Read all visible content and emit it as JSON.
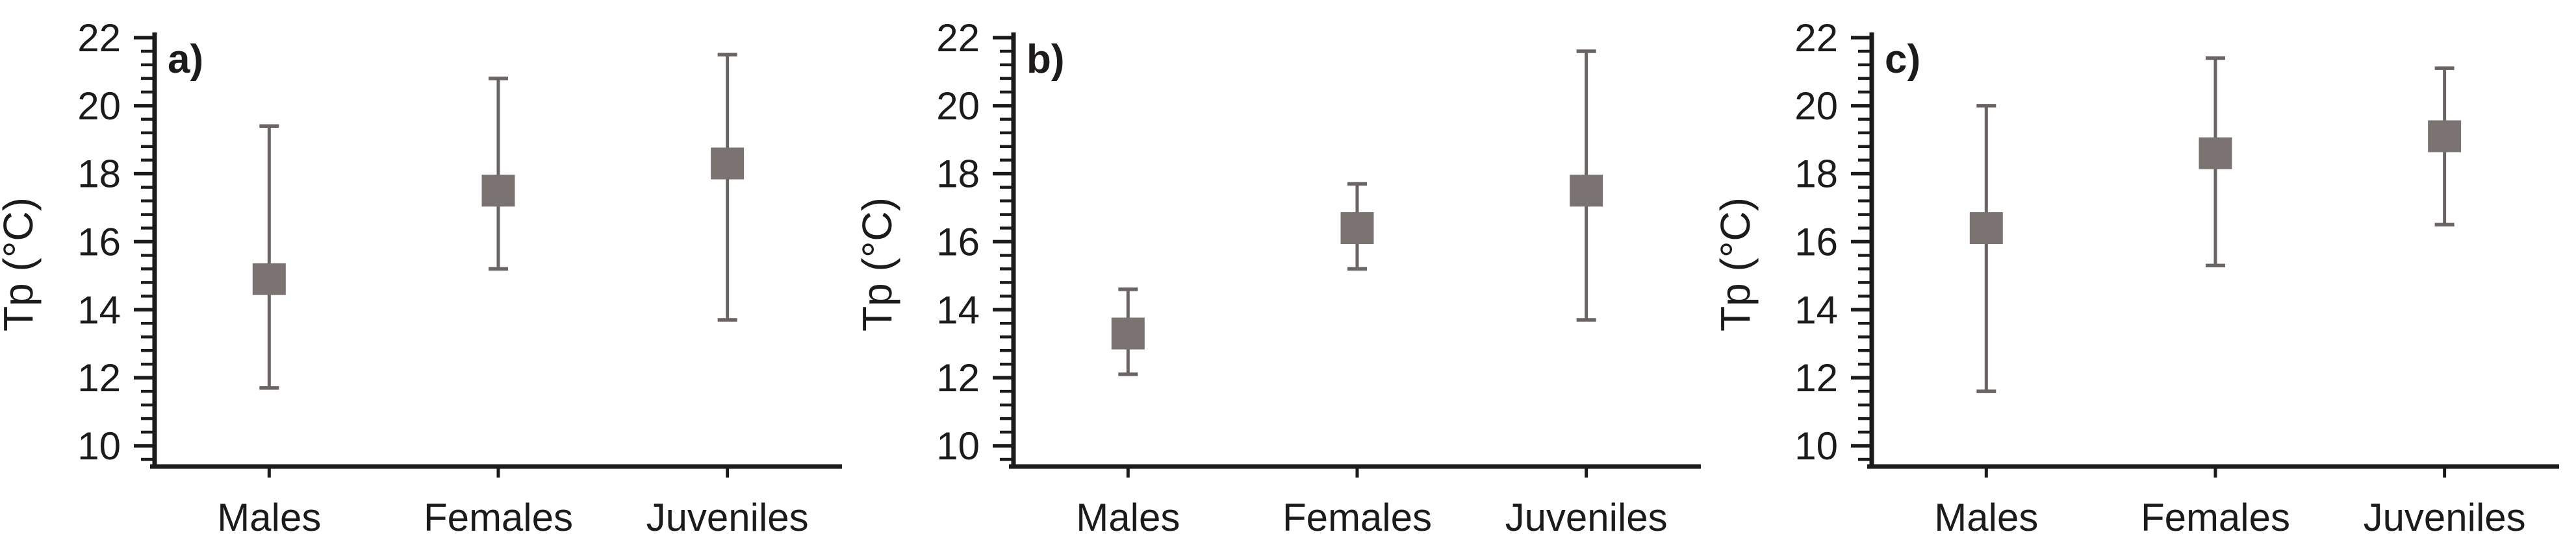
{
  "figure": {
    "background": "#ffffff",
    "style": {
      "marker_color": "#7a7371",
      "errorbar_color": "#6a6563",
      "axis_color": "#1d1b1a",
      "text_color": "#1d1b1a",
      "marker_shape": "square"
    }
  },
  "chart_data": [
    {
      "type": "scatter",
      "subtype": "point-with-error-bars",
      "panel_label": "a)",
      "ylabel": "Tp (°C)",
      "xlabel": "",
      "categories": [
        "Males",
        "Females",
        "Juveniles"
      ],
      "means": [
        14.9,
        17.5,
        18.3
      ],
      "error_upper": [
        19.4,
        20.8,
        21.5
      ],
      "error_lower": [
        11.7,
        15.2,
        13.7
      ],
      "ylim": [
        10,
        22
      ],
      "yticks": [
        10,
        12,
        14,
        16,
        18,
        20,
        22
      ],
      "ytick_major_step": 2,
      "ytick_minor_step": 0.4,
      "grid": false,
      "legend": false
    },
    {
      "type": "scatter",
      "subtype": "point-with-error-bars",
      "panel_label": "b)",
      "ylabel": "Tp (°C)",
      "xlabel": "",
      "categories": [
        "Males",
        "Females",
        "Juveniles"
      ],
      "means": [
        13.3,
        16.4,
        17.5
      ],
      "error_upper": [
        14.6,
        17.7,
        21.6
      ],
      "error_lower": [
        12.1,
        15.2,
        13.7
      ],
      "ylim": [
        10,
        22
      ],
      "yticks": [
        10,
        12,
        14,
        16,
        18,
        20,
        22
      ],
      "ytick_major_step": 2,
      "ytick_minor_step": 0.4,
      "grid": false,
      "legend": false
    },
    {
      "type": "scatter",
      "subtype": "point-with-error-bars",
      "panel_label": "c)",
      "ylabel": "Tp (°C)",
      "xlabel": "",
      "categories": [
        "Males",
        "Females",
        "Juveniles"
      ],
      "means": [
        16.4,
        18.6,
        19.1
      ],
      "error_upper": [
        20.0,
        21.4,
        21.1
      ],
      "error_lower": [
        11.6,
        15.3,
        16.5
      ],
      "ylim": [
        10,
        22
      ],
      "yticks": [
        10,
        12,
        14,
        16,
        18,
        20,
        22
      ],
      "ytick_major_step": 2,
      "ytick_minor_step": 0.4,
      "grid": false,
      "legend": false
    }
  ]
}
